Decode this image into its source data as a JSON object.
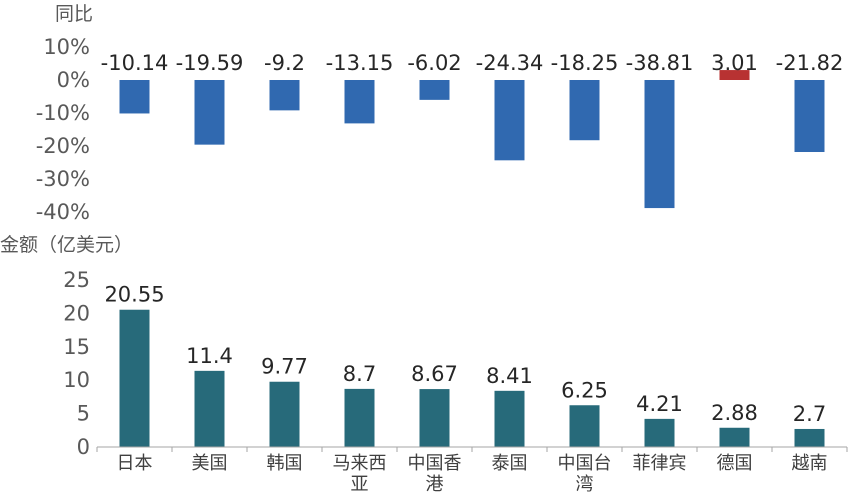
{
  "chart_data": [
    {
      "type": "bar",
      "ylabel": "同比",
      "ylim": [
        -40,
        10
      ],
      "yticks": [
        "10%",
        "0%",
        "-10%",
        "-20%",
        "-30%",
        "-40%"
      ],
      "categories": [
        "日本",
        "美国",
        "韩国",
        "马来西亚",
        "中国香港",
        "泰国",
        "中国台湾",
        "菲律宾",
        "德国",
        "越南"
      ],
      "values": [
        -10.14,
        -19.59,
        -9.2,
        -13.15,
        -6.02,
        -24.34,
        -18.25,
        -38.81,
        3.01,
        -21.82
      ],
      "data_labels": [
        "-10.14",
        "-19.59",
        "-9.2",
        "-13.15",
        "-6.02",
        "-24.34",
        "-18.25",
        "-38.81",
        "3.01",
        "-21.82"
      ],
      "colors": {
        "negative": "#3069b0",
        "positive": "#b83232"
      },
      "grid": false
    },
    {
      "type": "bar",
      "ylabel": "金额（亿美元）",
      "ylim": [
        0,
        25
      ],
      "yticks": [
        "25",
        "20",
        "15",
        "10",
        "5",
        "0"
      ],
      "categories": [
        "日本",
        "美国",
        "韩国",
        "马来西亚",
        "中国香港",
        "泰国",
        "中国台湾",
        "菲律宾",
        "德国",
        "越南"
      ],
      "category_lines": [
        [
          "日本"
        ],
        [
          "美国"
        ],
        [
          "韩国"
        ],
        [
          "马来西",
          "亚"
        ],
        [
          "中国香",
          "港"
        ],
        [
          "泰国"
        ],
        [
          "中国台",
          "湾"
        ],
        [
          "菲律宾"
        ],
        [
          "德国"
        ],
        [
          "越南"
        ]
      ],
      "values": [
        20.55,
        11.4,
        9.77,
        8.7,
        8.67,
        8.41,
        6.25,
        4.21,
        2.88,
        2.7
      ],
      "data_labels": [
        "20.55",
        "11.4",
        "9.77",
        "8.7",
        "8.67",
        "8.41",
        "6.25",
        "4.21",
        "2.88",
        "2.7"
      ],
      "colors": {
        "bar": "#276a7a",
        "axis": "#a6a6a6"
      },
      "grid": false
    }
  ]
}
